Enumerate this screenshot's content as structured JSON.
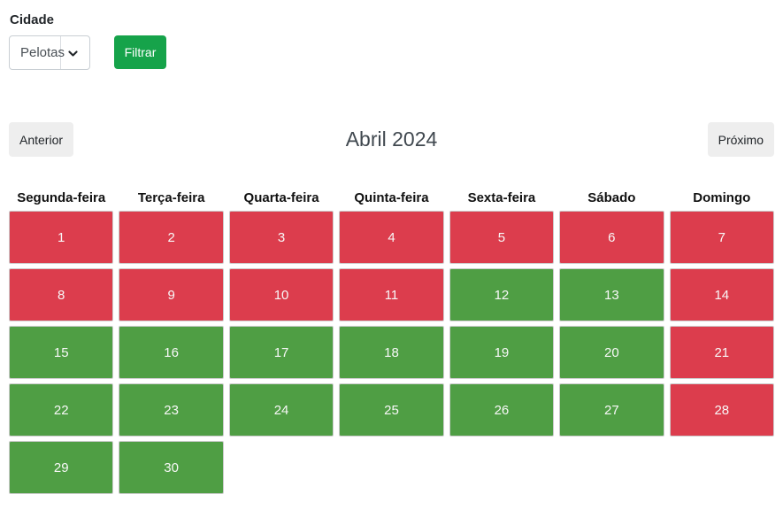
{
  "filter": {
    "label": "Cidade",
    "city_value": "Pelotas",
    "button_label": "Filtrar",
    "button_color": "#16a34a"
  },
  "nav": {
    "prev_label": "Anterior",
    "title": "Abril 2024",
    "next_label": "Próximo"
  },
  "calendar": {
    "weekdays": [
      "Segunda-feira",
      "Terça-feira",
      "Quarta-feira",
      "Quinta-feira",
      "Sexta-feira",
      "Sábado",
      "Domingo"
    ],
    "status_colors": {
      "unavailable": "#dc3d4d",
      "available": "#4f9e44"
    },
    "days": [
      {
        "day": "1",
        "status": "unavailable"
      },
      {
        "day": "2",
        "status": "unavailable"
      },
      {
        "day": "3",
        "status": "unavailable"
      },
      {
        "day": "4",
        "status": "unavailable"
      },
      {
        "day": "5",
        "status": "unavailable"
      },
      {
        "day": "6",
        "status": "unavailable"
      },
      {
        "day": "7",
        "status": "unavailable"
      },
      {
        "day": "8",
        "status": "unavailable"
      },
      {
        "day": "9",
        "status": "unavailable"
      },
      {
        "day": "10",
        "status": "unavailable"
      },
      {
        "day": "11",
        "status": "unavailable"
      },
      {
        "day": "12",
        "status": "available"
      },
      {
        "day": "13",
        "status": "available"
      },
      {
        "day": "14",
        "status": "unavailable"
      },
      {
        "day": "15",
        "status": "available"
      },
      {
        "day": "16",
        "status": "available"
      },
      {
        "day": "17",
        "status": "available"
      },
      {
        "day": "18",
        "status": "available"
      },
      {
        "day": "19",
        "status": "available"
      },
      {
        "day": "20",
        "status": "available"
      },
      {
        "day": "21",
        "status": "unavailable"
      },
      {
        "day": "22",
        "status": "available"
      },
      {
        "day": "23",
        "status": "available"
      },
      {
        "day": "24",
        "status": "available"
      },
      {
        "day": "25",
        "status": "available"
      },
      {
        "day": "26",
        "status": "available"
      },
      {
        "day": "27",
        "status": "available"
      },
      {
        "day": "28",
        "status": "unavailable"
      },
      {
        "day": "29",
        "status": "available"
      },
      {
        "day": "30",
        "status": "available"
      }
    ]
  }
}
